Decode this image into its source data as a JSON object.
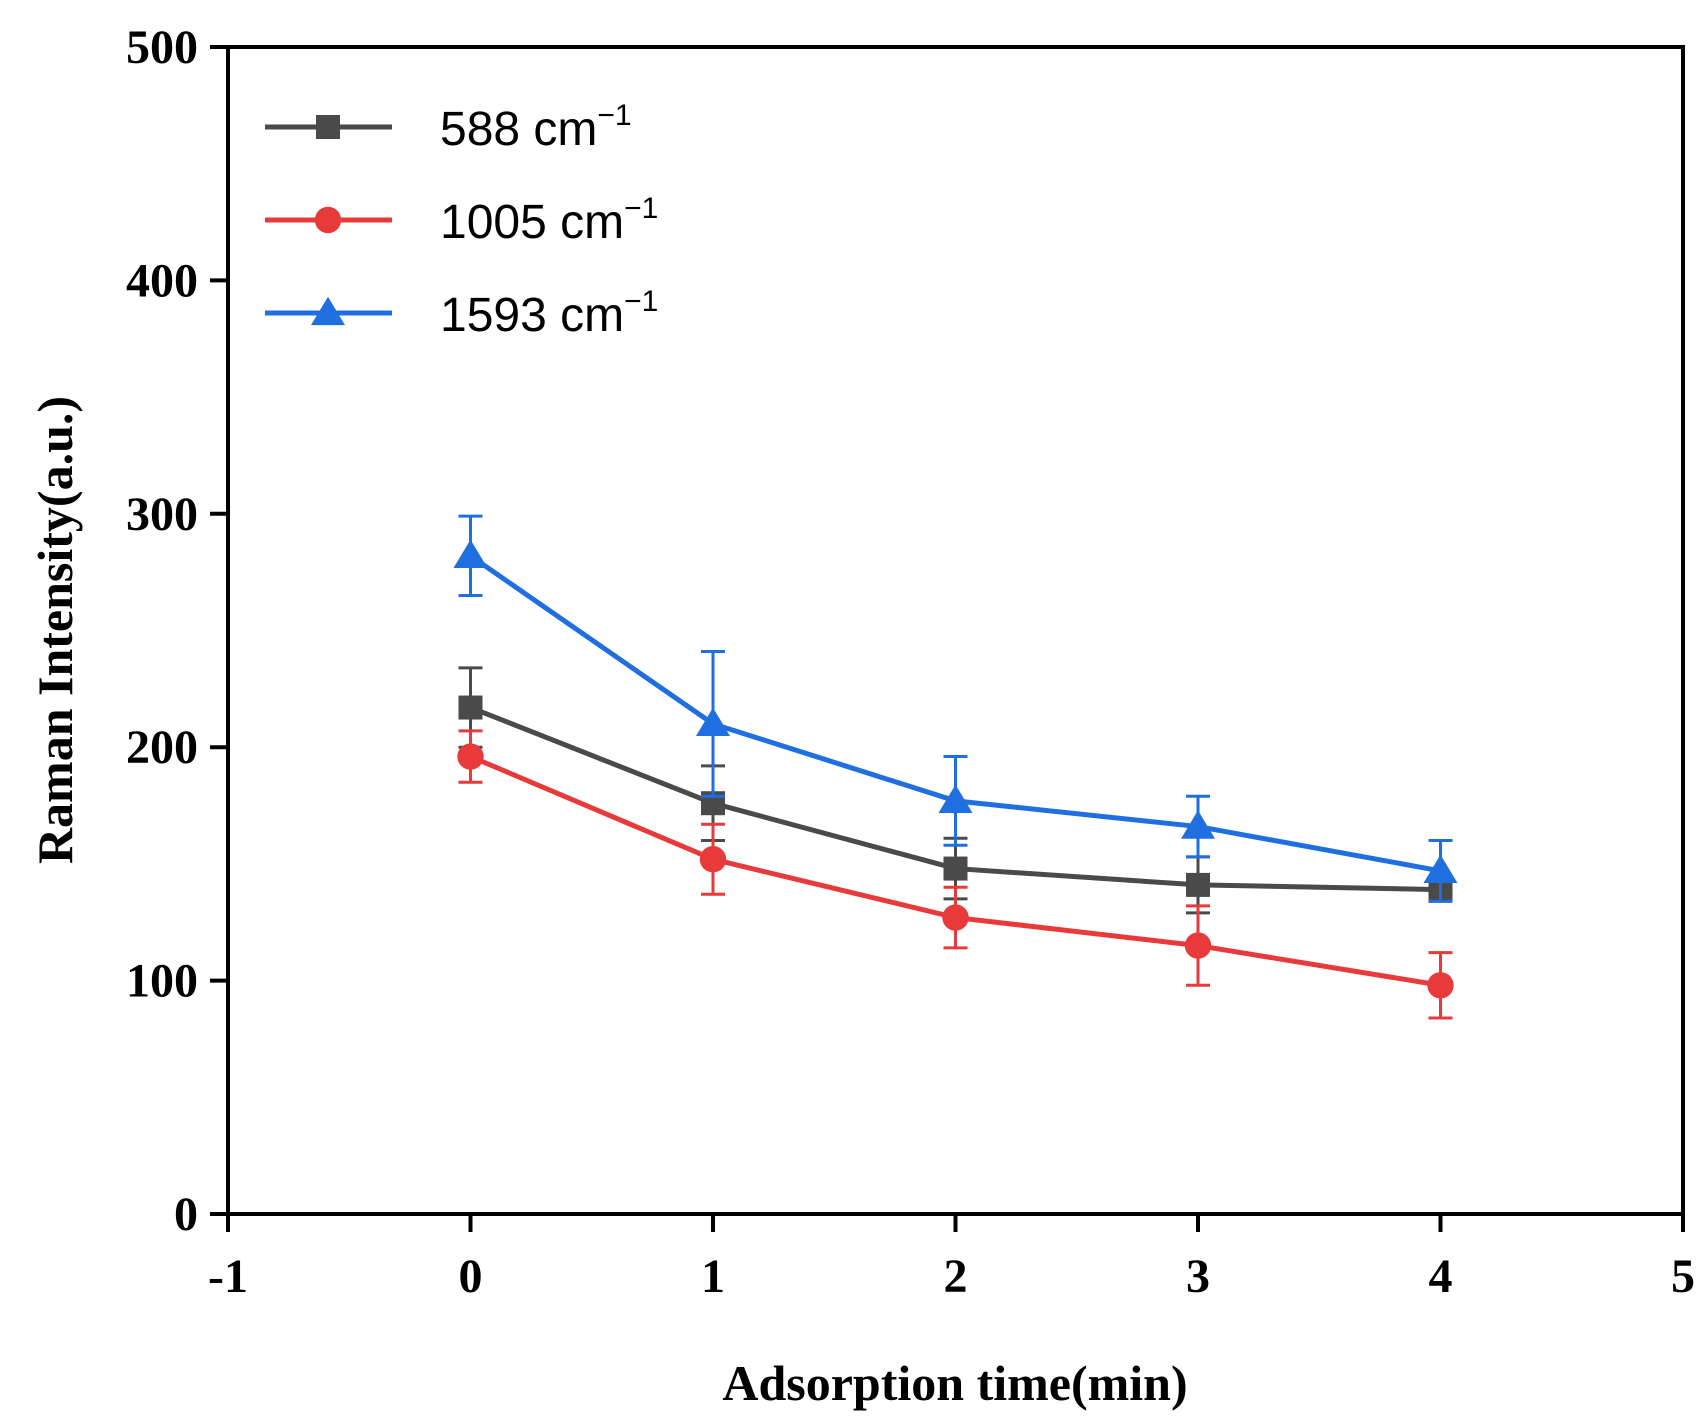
{
  "chart_data": {
    "type": "line",
    "title": "",
    "xlabel": "Adsorption time(min)",
    "ylabel": "Raman Intensity(a.u.)",
    "xlim": [
      -1,
      5
    ],
    "ylim": [
      0,
      500
    ],
    "xticks": [
      -1,
      0,
      1,
      2,
      3,
      4,
      5
    ],
    "yticks": [
      0,
      100,
      200,
      300,
      400,
      500
    ],
    "grid": false,
    "legend_position": "top-left",
    "x": [
      0,
      1,
      2,
      3,
      4
    ],
    "series": [
      {
        "name": "588 cm",
        "sup": "−1",
        "marker": "square",
        "color": "#4a4a4a",
        "values": [
          217,
          176,
          148,
          141,
          139
        ],
        "errors": [
          17,
          16,
          13,
          12,
          5
        ]
      },
      {
        "name": "1005 cm",
        "sup": "−1",
        "marker": "circle",
        "color": "#e83a3a",
        "values": [
          196,
          152,
          127,
          115,
          98
        ],
        "errors": [
          11,
          15,
          13,
          17,
          14
        ]
      },
      {
        "name": "1593 cm",
        "sup": "−1",
        "marker": "triangle",
        "color": "#1f6fe0",
        "values": [
          282,
          210,
          177,
          166,
          147
        ],
        "errors": [
          17,
          31,
          19,
          13,
          13
        ]
      }
    ]
  }
}
